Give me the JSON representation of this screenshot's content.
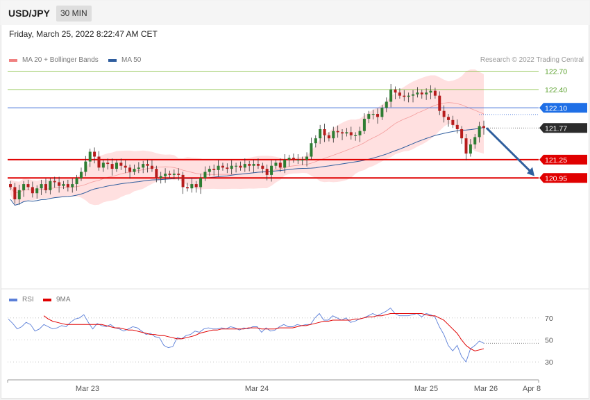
{
  "header": {
    "symbol": "USD/JPY",
    "timeframe": "30 MIN"
  },
  "datetime": "Friday, March 25, 2022 8:22:47 AM CET",
  "credit": "Research © 2022 Trading Central",
  "colors": {
    "ma20": "#f08080",
    "bollinger_fill": "#ffd8d8",
    "ma50": "#2f5d9e",
    "candle": "#2e7d32",
    "resistance": "#8bc34a",
    "pivot": "#3b6fd8",
    "support": "#e00000",
    "arrow": "#2f5f9e",
    "rsi": "#5b7fd8",
    "rsi_ma": "#e00000"
  },
  "chart_data": [
    {
      "type": "candlestick",
      "title": "",
      "legend": [
        {
          "name": "MA 20 + Bollinger Bands"
        },
        {
          "name": "MA 50"
        }
      ],
      "legend_position": "top-left",
      "ylim": [
        119.2,
        122.9
      ],
      "x_ticks": [
        "Mar 23",
        "Mar 24",
        "Mar 25",
        "Mar 26",
        "Apr 8"
      ],
      "levels": [
        {
          "label": "122.70",
          "value": 122.7,
          "kind": "resistance"
        },
        {
          "label": "122.40",
          "value": 122.4,
          "kind": "resistance"
        },
        {
          "label": "122.10",
          "value": 122.1,
          "kind": "pivot"
        },
        {
          "label": "121.77",
          "value": 121.77,
          "kind": "last-price"
        },
        {
          "label": "121.25",
          "value": 121.25,
          "kind": "support"
        },
        {
          "label": "120.95",
          "value": 120.95,
          "kind": "support"
        }
      ],
      "close": [
        120.8,
        120.6,
        120.75,
        120.85,
        120.8,
        120.7,
        120.78,
        120.85,
        120.75,
        120.9,
        120.88,
        120.82,
        120.85,
        120.8,
        120.85,
        120.95,
        121.05,
        121.22,
        121.38,
        121.3,
        121.12,
        121.2,
        121.18,
        121.1,
        121.2,
        121.15,
        121.12,
        121.05,
        121.1,
        121.12,
        121.18,
        121.15,
        121.1,
        120.95,
        120.98,
        121.02,
        121.0,
        121.02,
        121.0,
        120.8,
        120.78,
        120.85,
        120.8,
        120.95,
        121.05,
        121.1,
        121.08,
        121.15,
        121.12,
        121.1,
        121.15,
        121.15,
        121.12,
        121.18,
        121.15,
        121.18,
        121.15,
        121.1,
        121.0,
        121.15,
        121.2,
        121.12,
        121.25,
        121.28,
        121.25,
        121.25,
        121.25,
        121.3,
        121.52,
        121.6,
        121.75,
        121.65,
        121.6,
        121.72,
        121.7,
        121.68,
        121.7,
        121.65,
        121.65,
        121.72,
        121.92,
        122.0,
        122.0,
        121.95,
        122.1,
        122.2,
        122.4,
        122.35,
        122.3,
        122.28,
        122.3,
        122.32,
        122.35,
        122.32,
        122.35,
        122.38,
        122.3,
        122.05,
        121.95,
        121.9,
        121.82,
        121.75,
        121.6,
        121.35,
        121.5,
        121.62,
        121.8,
        121.77
      ],
      "rsi": {
        "name": "RSI",
        "ma_name": "9MA",
        "ylim": [
          20,
          80
        ],
        "ticks": [
          30,
          50,
          70
        ],
        "values": [
          69,
          65,
          60,
          62,
          66,
          64,
          58,
          60,
          64,
          62,
          60,
          61,
          63,
          62,
          66,
          69,
          70,
          73,
          66,
          60,
          65,
          63,
          62,
          64,
          61,
          60,
          58,
          60,
          62,
          61,
          58,
          55,
          56,
          53,
          52,
          45,
          43,
          44,
          52,
          51,
          54,
          55,
          58,
          57,
          60,
          61,
          60,
          60,
          61,
          60,
          62,
          61,
          59,
          61,
          60,
          62,
          62,
          57,
          61,
          58,
          59,
          62,
          64,
          62,
          62,
          64,
          63,
          64,
          64,
          70,
          74,
          68,
          68,
          72,
          70,
          68,
          70,
          66,
          67,
          69,
          70,
          72,
          74,
          72,
          74,
          76,
          79,
          74,
          72,
          72,
          72,
          73,
          74,
          71,
          74,
          73,
          71,
          62,
          55,
          45,
          40,
          45,
          35,
          30,
          42,
          45,
          49,
          47
        ],
        "ma": [
          null,
          null,
          null,
          null,
          null,
          null,
          null,
          null,
          72,
          69,
          67,
          66,
          65,
          64,
          64,
          64,
          64,
          64,
          64,
          64,
          64,
          64,
          63,
          62,
          61,
          61,
          60,
          59,
          59,
          58,
          57,
          56,
          55,
          55,
          54,
          54,
          53,
          52,
          51,
          51,
          52,
          53,
          54,
          56,
          57,
          58,
          59,
          59,
          60,
          60,
          60,
          60,
          60,
          60,
          61,
          61,
          61,
          60,
          60,
          60,
          60,
          61,
          61,
          61,
          61,
          62,
          63,
          63,
          64,
          65,
          66,
          67,
          67,
          68,
          68,
          68,
          68,
          68,
          69,
          69,
          70,
          71,
          71,
          72,
          72,
          73,
          74,
          74,
          74,
          74,
          74,
          74,
          74,
          74,
          73,
          72,
          72,
          70,
          68,
          64,
          60,
          56,
          50,
          45,
          42,
          40,
          41,
          42
        ]
      }
    }
  ]
}
